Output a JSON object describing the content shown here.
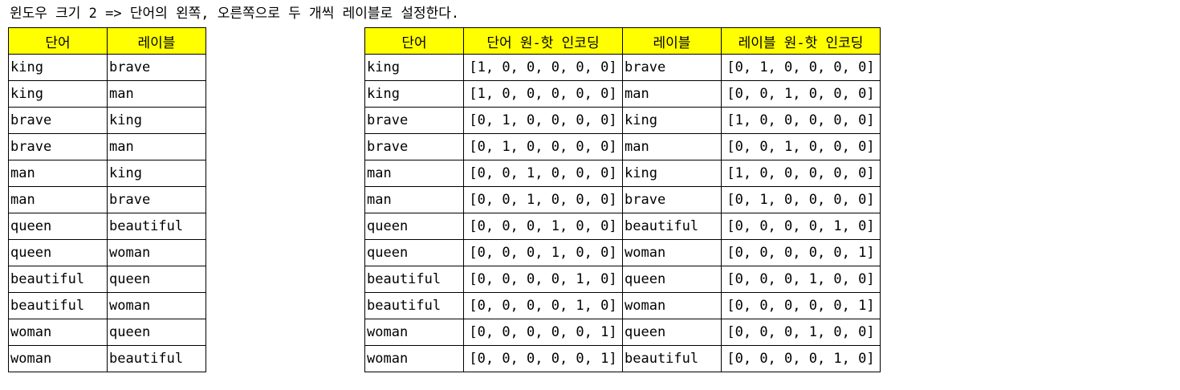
{
  "caption": "윈도우 크기 2 => 단어의 왼쪽, 오른쪽으로 두 개씩 레이블로 설정한다.",
  "left_table": {
    "headers": [
      "단어",
      "레이블"
    ],
    "rows": [
      [
        "king",
        "brave"
      ],
      [
        "king",
        "man"
      ],
      [
        "brave",
        "king"
      ],
      [
        "brave",
        "man"
      ],
      [
        "man",
        "king"
      ],
      [
        "man",
        "brave"
      ],
      [
        "queen",
        "beautiful"
      ],
      [
        "queen",
        "woman"
      ],
      [
        "beautiful",
        "queen"
      ],
      [
        "beautiful",
        "woman"
      ],
      [
        "woman",
        "queen"
      ],
      [
        "woman",
        "beautiful"
      ]
    ]
  },
  "right_table": {
    "headers": [
      "단어",
      "단어 원-핫 인코딩",
      "레이블",
      "레이블 원-핫 인코딩"
    ],
    "rows": [
      [
        "king",
        "[1, 0, 0, 0, 0, 0]",
        "brave",
        "[0, 1, 0, 0, 0, 0]"
      ],
      [
        "king",
        "[1, 0, 0, 0, 0, 0]",
        "man",
        "[0, 0, 1, 0, 0, 0]"
      ],
      [
        "brave",
        "[0, 1, 0, 0, 0, 0]",
        "king",
        "[1, 0, 0, 0, 0, 0]"
      ],
      [
        "brave",
        "[0, 1, 0, 0, 0, 0]",
        "man",
        "[0, 0, 1, 0, 0, 0]"
      ],
      [
        "man",
        "[0, 0, 1, 0, 0, 0]",
        "king",
        "[1, 0, 0, 0, 0, 0]"
      ],
      [
        "man",
        "[0, 0, 1, 0, 0, 0]",
        "brave",
        "[0, 1, 0, 0, 0, 0]"
      ],
      [
        "queen",
        "[0, 0, 0, 1, 0, 0]",
        "beautiful",
        "[0, 0, 0, 0, 1, 0]"
      ],
      [
        "queen",
        "[0, 0, 0, 1, 0, 0]",
        "woman",
        "[0, 0, 0, 0, 0, 1]"
      ],
      [
        "beautiful",
        "[0, 0, 0, 0, 1, 0]",
        "queen",
        "[0, 0, 0, 1, 0, 0]"
      ],
      [
        "beautiful",
        "[0, 0, 0, 0, 1, 0]",
        "woman",
        "[0, 0, 0, 0, 0, 1]"
      ],
      [
        "woman",
        "[0, 0, 0, 0, 0, 1]",
        "queen",
        "[0, 0, 0, 1, 0, 0]"
      ],
      [
        "woman",
        "[0, 0, 0, 0, 0, 1]",
        "beautiful",
        "[0, 0, 0, 0, 1, 0]"
      ]
    ]
  },
  "colors": {
    "header_background": "#ffff00",
    "border": "#000000"
  }
}
